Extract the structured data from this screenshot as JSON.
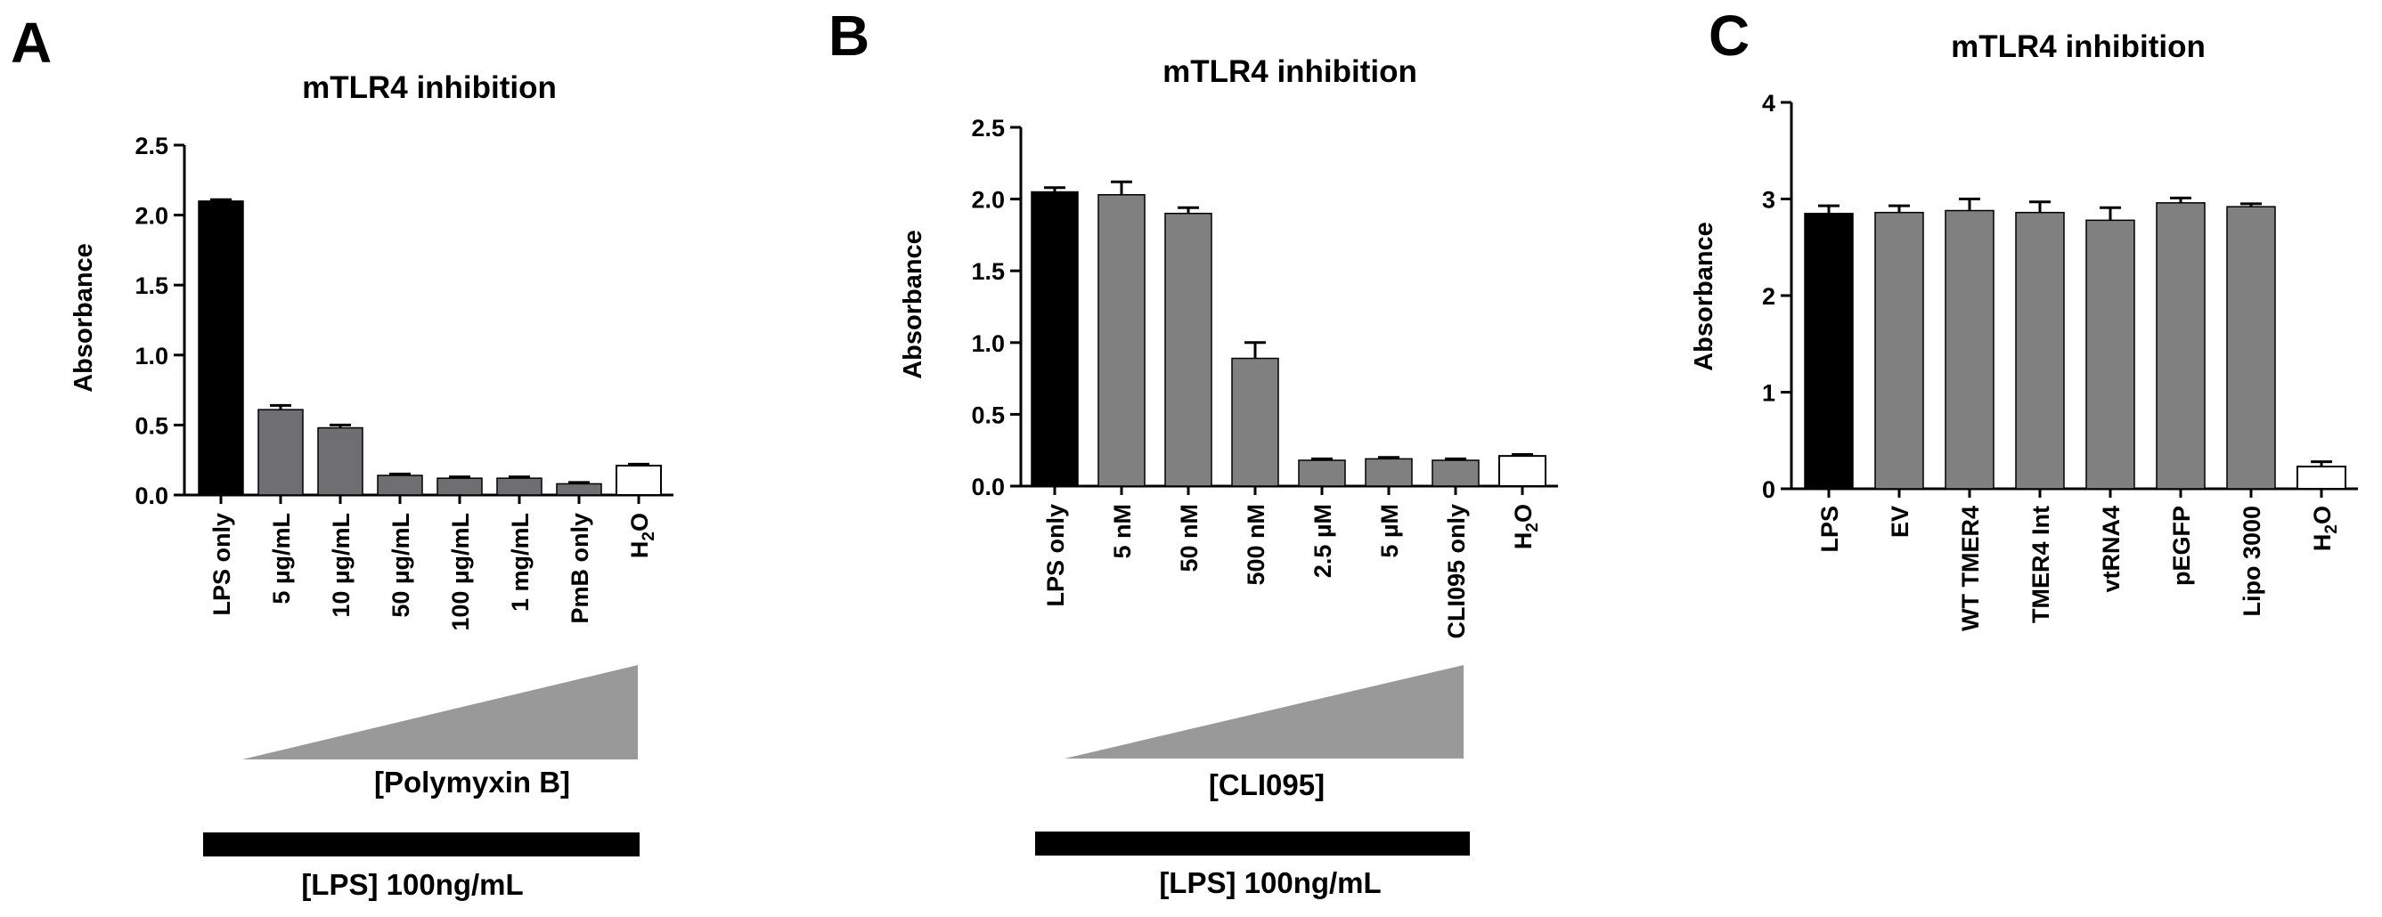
{
  "panels": [
    {
      "letter": "A",
      "title": "mTLR4 inhibition",
      "ylabel": "Absorbance",
      "ylim": [
        0,
        2.5
      ],
      "yticks": [
        "0.0",
        "0.5",
        "1.0",
        "1.5",
        "2.0",
        "2.5"
      ],
      "ytick_values": [
        0,
        0.5,
        1.0,
        1.5,
        2.0,
        2.5
      ],
      "gradient_label": "[Polymyxin B]",
      "lps_label": "[LPS] 100ng/mL"
    },
    {
      "letter": "B",
      "title": "mTLR4 inhibition",
      "ylabel": "Absorbance",
      "ylim": [
        0,
        2.5
      ],
      "yticks": [
        "0.0",
        "0.5",
        "1.0",
        "1.5",
        "2.0",
        "2.5"
      ],
      "ytick_values": [
        0,
        0.5,
        1.0,
        1.5,
        2.0,
        2.5
      ],
      "gradient_label": "[CLI095]",
      "lps_label": "[LPS] 100ng/mL"
    },
    {
      "letter": "C",
      "title": "mTLR4 inhibition",
      "ylabel": "Absorbance",
      "ylim": [
        0,
        4
      ],
      "yticks": [
        "0",
        "1",
        "2",
        "3",
        "4"
      ],
      "ytick_values": [
        0,
        1,
        2,
        3,
        4
      ]
    }
  ],
  "colors": {
    "lps": "#000000",
    "treatment_a": "#6f6f72",
    "treatment_bc": "#808080",
    "water": "#ffffff",
    "gradient": "#999999"
  },
  "chart_data": [
    {
      "type": "bar",
      "title": "mTLR4 inhibition",
      "ylabel": "Absorbance",
      "ylim": [
        0,
        2.5
      ],
      "categories": [
        "LPS only",
        "5 µg/mL",
        "10 µg/mL",
        "50 µg/mL",
        "100 µg/mL",
        "1 mg/mL",
        "PmB only",
        "H2O"
      ],
      "values": [
        2.1,
        0.61,
        0.48,
        0.14,
        0.12,
        0.12,
        0.08,
        0.21
      ],
      "errors": [
        0.01,
        0.03,
        0.02,
        0.01,
        0.01,
        0.01,
        0.01,
        0.01
      ],
      "bar_colors": [
        "lps",
        "treatment_a",
        "treatment_a",
        "treatment_a",
        "treatment_a",
        "treatment_a",
        "treatment_a",
        "water"
      ]
    },
    {
      "type": "bar",
      "title": "mTLR4 inhibition",
      "ylabel": "Absorbance",
      "ylim": [
        0,
        2.5
      ],
      "categories": [
        "LPS only",
        "5 nM",
        "50 nM",
        "500 nM",
        "2.5 µM",
        "5 µM",
        "CLI095 only",
        "H2O"
      ],
      "values": [
        2.05,
        2.03,
        1.9,
        0.89,
        0.18,
        0.19,
        0.18,
        0.21
      ],
      "errors": [
        0.03,
        0.09,
        0.04,
        0.11,
        0.01,
        0.01,
        0.01,
        0.01
      ],
      "bar_colors": [
        "lps",
        "treatment_bc",
        "treatment_bc",
        "treatment_bc",
        "treatment_bc",
        "treatment_bc",
        "treatment_bc",
        "water"
      ]
    },
    {
      "type": "bar",
      "title": "mTLR4 inhibition",
      "ylabel": "Absorbance",
      "ylim": [
        0,
        4
      ],
      "categories": [
        "LPS",
        "EV",
        "WT TMER4",
        "TMER4 Int",
        "vtRNA4",
        "pEGFP",
        "Lipo 3000",
        "H2O"
      ],
      "values": [
        2.85,
        2.86,
        2.88,
        2.86,
        2.78,
        2.96,
        2.92,
        0.23
      ],
      "errors": [
        0.08,
        0.07,
        0.12,
        0.11,
        0.13,
        0.05,
        0.03,
        0.05
      ],
      "bar_colors": [
        "lps",
        "treatment_bc",
        "treatment_bc",
        "treatment_bc",
        "treatment_bc",
        "treatment_bc",
        "treatment_bc",
        "water"
      ]
    }
  ]
}
